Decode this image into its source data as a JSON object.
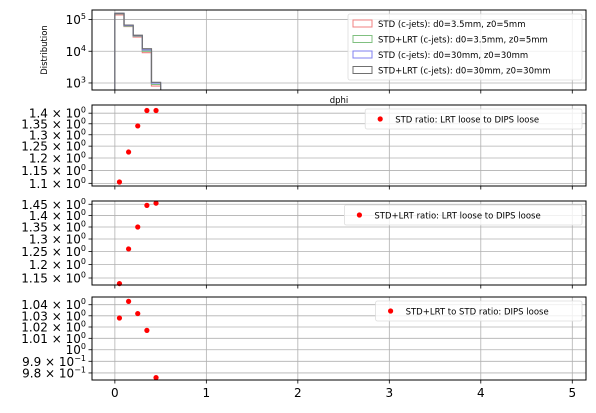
{
  "chart_data": [
    {
      "type": "histogram",
      "xlabel": "dphi",
      "ylabel": "Distribution",
      "yscale": "log",
      "ylim": [
        600,
        200000
      ],
      "xlim": [
        -0.25,
        5.15
      ],
      "grid": true,
      "legend_position": "top-right",
      "yticks": [
        {
          "value": 1000,
          "base": "10",
          "exp": "3"
        },
        {
          "value": 10000,
          "base": "10",
          "exp": "4"
        },
        {
          "value": 100000,
          "base": "10",
          "exp": "5"
        }
      ],
      "bin_edges": [
        0,
        0.1,
        0.2,
        0.3,
        0.4,
        0.5
      ],
      "series": [
        {
          "name": "STD (c-jets): d0=3.5mm, z0=5mm",
          "color": "#f08080",
          "values": [
            140000,
            60000,
            28000,
            9000,
            800
          ]
        },
        {
          "name": "STD+LRT (c-jets): d0=3.5mm, z0=5mm",
          "color": "#80c080",
          "values": [
            150000,
            62000,
            30000,
            10000,
            900
          ]
        },
        {
          "name": "STD (c-jets): d0=30mm, z0=30mm",
          "color": "#8080f0",
          "values": [
            155000,
            65000,
            31000,
            11000,
            1000
          ]
        },
        {
          "name": "STD+LRT (c-jets): d0=30mm, z0=30mm",
          "color": "#707070",
          "values": [
            158000,
            67000,
            32000,
            12000,
            1050
          ]
        }
      ]
    },
    {
      "type": "scatter",
      "yscale": "log",
      "ylim": [
        1.09,
        1.44
      ],
      "xlim": [
        -0.25,
        5.15
      ],
      "grid": true,
      "legend_position": "top-right",
      "yticks": [
        {
          "value": 1.1,
          "mant": "1.1",
          "exp": "0"
        },
        {
          "value": 1.15,
          "mant": "1.15",
          "exp": "0"
        },
        {
          "value": 1.2,
          "mant": "1.2",
          "exp": "0"
        },
        {
          "value": 1.25,
          "mant": "1.25",
          "exp": "0"
        },
        {
          "value": 1.3,
          "mant": "1.3",
          "exp": "0"
        },
        {
          "value": 1.35,
          "mant": "1.35",
          "exp": "0"
        },
        {
          "value": 1.4,
          "mant": "1.4",
          "exp": "0"
        }
      ],
      "series": [
        {
          "name": "STD ratio: LRT loose to DIPS loose",
          "color": "#ff0000",
          "x": [
            0.05,
            0.15,
            0.25,
            0.35,
            0.45
          ],
          "y": [
            1.105,
            1.225,
            1.34,
            1.413,
            1.413
          ]
        }
      ]
    },
    {
      "type": "scatter",
      "yscale": "log",
      "ylim": [
        1.125,
        1.465
      ],
      "xlim": [
        -0.25,
        5.15
      ],
      "grid": true,
      "legend_position": "top-right",
      "yticks": [
        {
          "value": 1.15,
          "mant": "1.15",
          "exp": "0"
        },
        {
          "value": 1.2,
          "mant": "1.2",
          "exp": "0"
        },
        {
          "value": 1.25,
          "mant": "1.25",
          "exp": "0"
        },
        {
          "value": 1.3,
          "mant": "1.3",
          "exp": "0"
        },
        {
          "value": 1.35,
          "mant": "1.35",
          "exp": "0"
        },
        {
          "value": 1.4,
          "mant": "1.4",
          "exp": "0"
        },
        {
          "value": 1.45,
          "mant": "1.45",
          "exp": "0"
        }
      ],
      "series": [
        {
          "name": "STD+LRT ratio: LRT loose to DIPS loose",
          "color": "#ff0000",
          "x": [
            0.05,
            0.15,
            0.25,
            0.35,
            0.45
          ],
          "y": [
            1.13,
            1.26,
            1.35,
            1.445,
            1.455
          ]
        }
      ]
    },
    {
      "type": "scatter",
      "yscale": "log",
      "ylim": [
        0.974,
        1.047
      ],
      "xlim": [
        -0.25,
        5.15
      ],
      "grid": true,
      "legend_position": "top-right",
      "yticks": [
        {
          "value": 0.98,
          "mant": "9.8",
          "exp": "−1"
        },
        {
          "value": 0.99,
          "mant": "9.9",
          "exp": "−1"
        },
        {
          "value": 1.0,
          "mant": "",
          "exp": "0"
        },
        {
          "value": 1.01,
          "mant": "1.01",
          "exp": "0"
        },
        {
          "value": 1.02,
          "mant": "1.02",
          "exp": "0"
        },
        {
          "value": 1.03,
          "mant": "1.03",
          "exp": "0"
        },
        {
          "value": 1.04,
          "mant": "1.04",
          "exp": "0"
        }
      ],
      "series": [
        {
          "name": "STD+LRT to STD ratio: DIPS loose",
          "color": "#ff0000",
          "x": [
            0.05,
            0.15,
            0.25,
            0.35,
            0.45
          ],
          "y": [
            1.028,
            1.043,
            1.032,
            1.017,
            0.976
          ]
        }
      ]
    }
  ],
  "shared_xticks": [
    {
      "value": 0,
      "label": "0"
    },
    {
      "value": 1,
      "label": "1"
    },
    {
      "value": 2,
      "label": "2"
    },
    {
      "value": 3,
      "label": "3"
    },
    {
      "value": 4,
      "label": "4"
    },
    {
      "value": 5,
      "label": "5"
    }
  ]
}
